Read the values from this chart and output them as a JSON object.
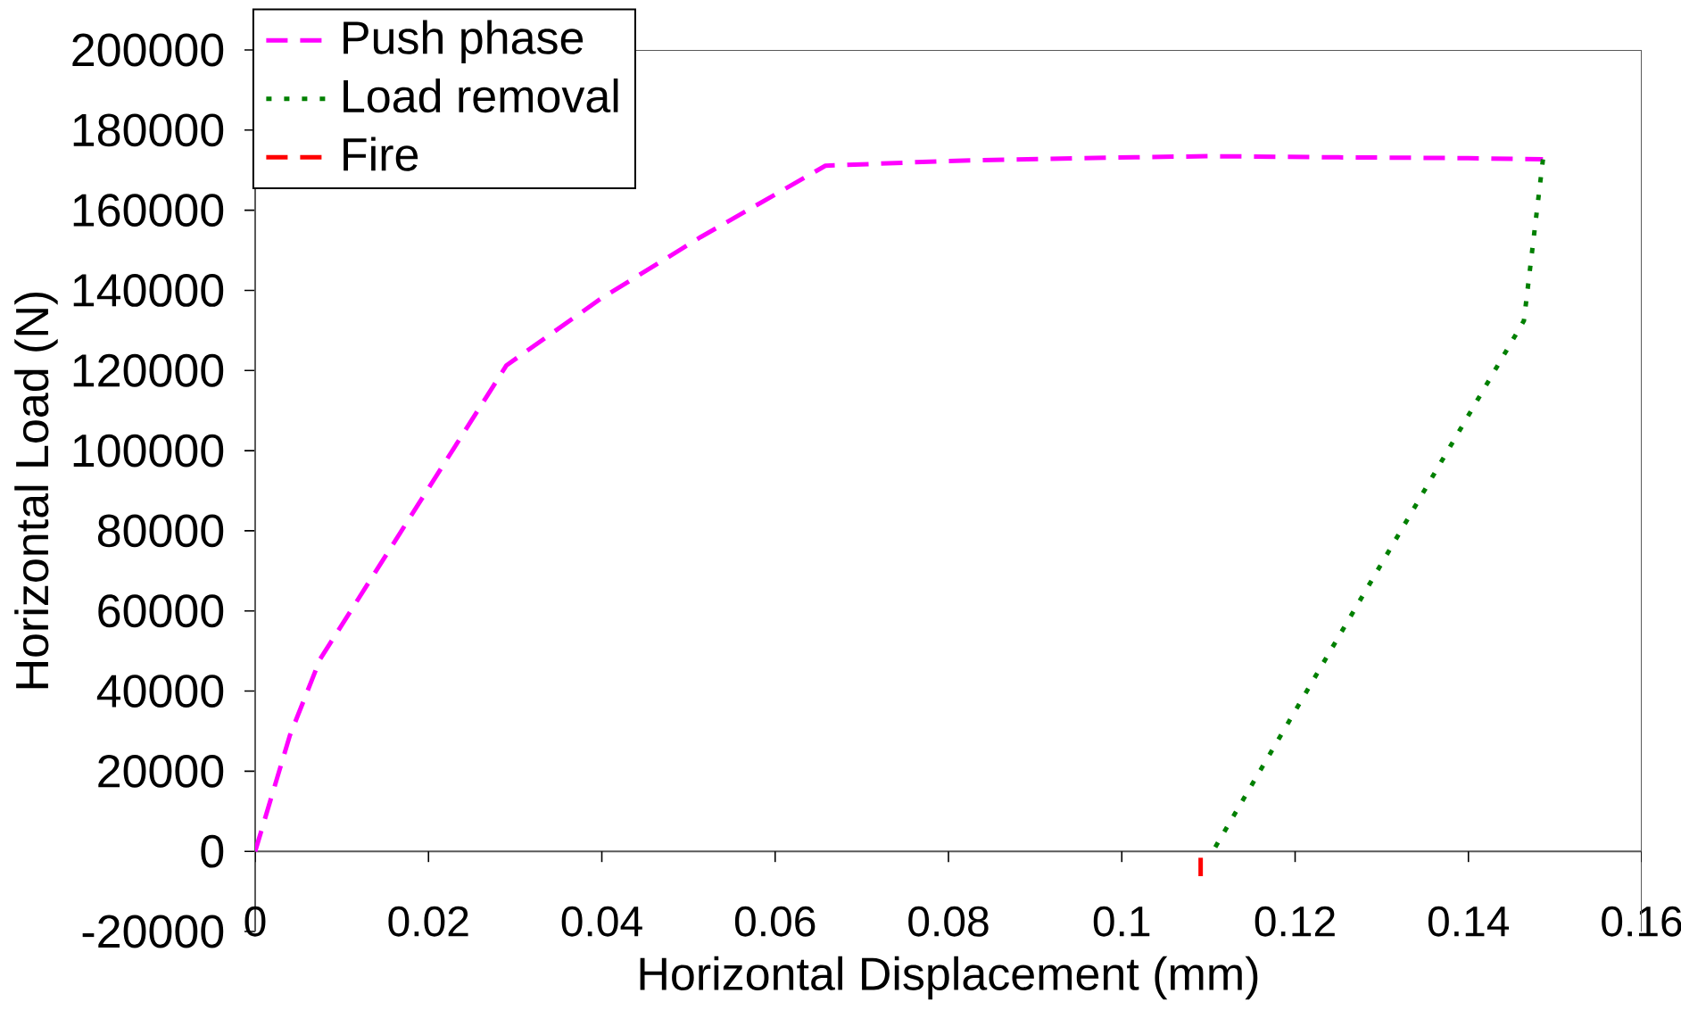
{
  "chart_data": {
    "type": "line",
    "xlabel": "Horizontal Displacement (mm)",
    "ylabel": "Horizontal Load (N)",
    "xlim": [
      0,
      0.16
    ],
    "ylim": [
      -20000,
      200000
    ],
    "xticks": [
      0,
      0.02,
      0.04,
      0.06,
      0.08,
      0.1,
      0.12,
      0.14,
      0.16
    ],
    "yticks": [
      -20000,
      0,
      20000,
      40000,
      60000,
      80000,
      100000,
      120000,
      140000,
      160000,
      180000,
      200000
    ],
    "grid": false,
    "legend": "top left",
    "marker": "none",
    "series": [
      {
        "name": "Push phase",
        "color": "#ff00ff",
        "line_style": "dashed",
        "x": [
          0,
          0.004,
          0.0075,
          0.029,
          0.0398,
          0.0514,
          0.0658,
          0.08,
          0.095,
          0.11,
          0.125,
          0.14,
          0.1486
        ],
        "values": [
          0,
          28900,
          48000,
          121300,
          137800,
          153300,
          171100,
          172300,
          173000,
          173500,
          173200,
          173000,
          172700
        ]
      },
      {
        "name": "Load removal",
        "color": "#008000",
        "line_style": "dotted",
        "x": [
          0.1486,
          0.1464,
          0.1105
        ],
        "values": [
          172700,
          132400,
          0
        ]
      },
      {
        "name": "Fire",
        "color": "#ff0000",
        "line_style": "dashed",
        "x": [
          0.1091,
          0.1091
        ],
        "values": [
          -1600,
          -6200
        ]
      }
    ]
  }
}
